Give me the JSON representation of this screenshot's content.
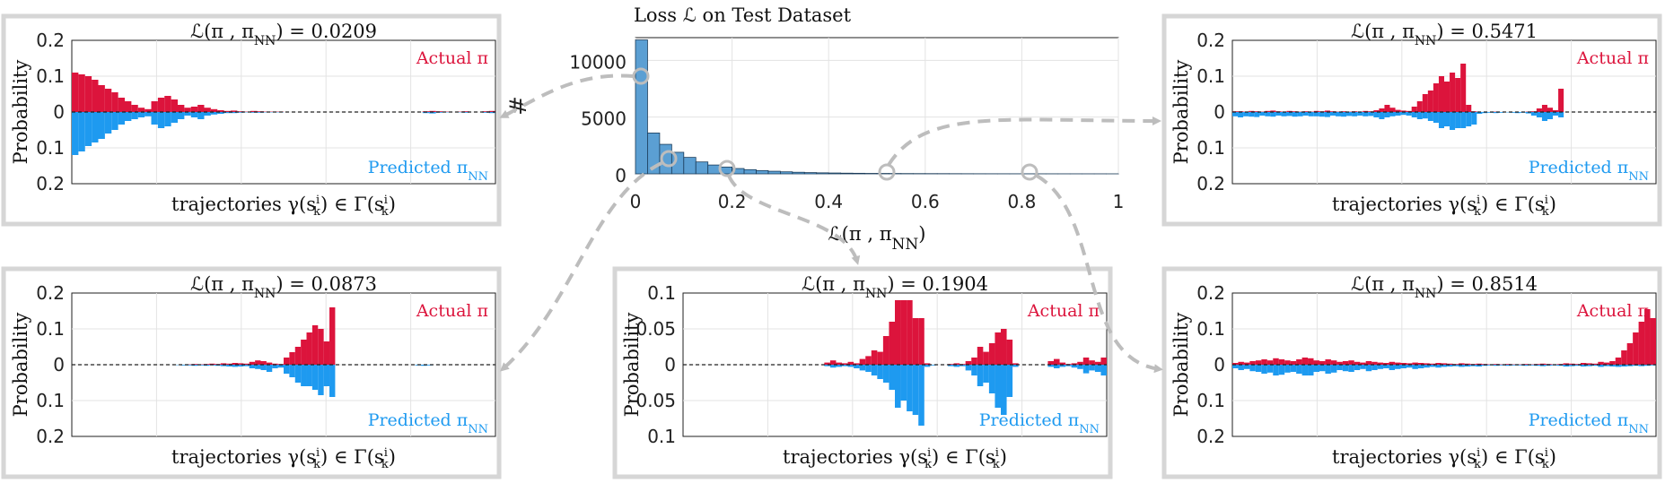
{
  "chart_data": [
    {
      "id": "histogram",
      "type": "bar",
      "title": "Loss ℒ on Test Dataset",
      "xlabel": "ℒ(π , π_NN)",
      "ylabel": "#",
      "xlim": [
        0,
        1
      ],
      "ylim": [
        0,
        12000
      ],
      "xticks": [
        "0",
        "0.2",
        "0.4",
        "0.6",
        "0.8",
        "1"
      ],
      "yticks": [
        "0",
        "5000",
        "10000"
      ],
      "bin_width": 0.025,
      "values": [
        11800,
        3600,
        2600,
        1900,
        1450,
        1050,
        780,
        600,
        470,
        370,
        290,
        230,
        180,
        140,
        110,
        90,
        75,
        60,
        50,
        40,
        35,
        30,
        25,
        22,
        20,
        18,
        15,
        12,
        10,
        9,
        8,
        7,
        6,
        5,
        5,
        4,
        4,
        3,
        3,
        2
      ],
      "color": "#5b9fd3"
    },
    {
      "id": "loss-0209",
      "type": "bar",
      "title_prefix": "ℒ(π , π",
      "title_sub": "NN",
      "title_value": ") = 0.0209",
      "ylabel": "Probability",
      "xlabel": "trajectories γ(s_k^i) ∈ Γ(s_k^i)",
      "yticks": [
        "0.2",
        "0.1",
        "0",
        "0.1",
        "0.2"
      ],
      "ylim": [
        -0.2,
        0.2
      ],
      "legend_actual": "Actual π",
      "legend_pred": "Predicted π",
      "legend_pred_sub": "NN",
      "actual": [
        0.11,
        0.105,
        0.1,
        0.09,
        0.075,
        0.065,
        0.055,
        0.04,
        0.03,
        0.02,
        0.012,
        0.008,
        0.03,
        0.04,
        0.045,
        0.035,
        0.02,
        0.012,
        0.015,
        0.02,
        0.012,
        0.008,
        0.005,
        0.003,
        0.004,
        0.002,
        0.001,
        0.003,
        0.002,
        0.001,
        0.001,
        0.001,
        0.0,
        0.0,
        0.0,
        0.0,
        0.0,
        0.0,
        0.0,
        0.0,
        0.0,
        0.0,
        0.0,
        0.0,
        0.0,
        0.0,
        0.0,
        0.0,
        0.0,
        0.0,
        0.0,
        0.0,
        0.0,
        0.002,
        0.003,
        0.002,
        0.001,
        0.0,
        0.001,
        0.002,
        0.0,
        0.0,
        0.002,
        0.003
      ],
      "predicted": [
        0.12,
        0.11,
        0.095,
        0.085,
        0.075,
        0.06,
        0.05,
        0.035,
        0.025,
        0.02,
        0.015,
        0.012,
        0.035,
        0.045,
        0.04,
        0.03,
        0.02,
        0.01,
        0.015,
        0.02,
        0.01,
        0.007,
        0.005,
        0.003,
        0.003,
        0.002,
        0.001,
        0.002,
        0.002,
        0.001,
        0.001,
        0.001,
        0.0,
        0.0,
        0.0,
        0.0,
        0.0,
        0.0,
        0.0,
        0.0,
        0.0,
        0.0,
        0.0,
        0.0,
        0.0,
        0.0,
        0.0,
        0.0,
        0.0,
        0.0,
        0.0,
        0.0,
        0.0,
        0.003,
        0.004,
        0.002,
        0.001,
        0.0,
        0.001,
        0.002,
        0.0,
        0.0,
        0.002,
        0.003
      ]
    },
    {
      "id": "loss-5471",
      "type": "bar",
      "title_prefix": "ℒ(π , π",
      "title_sub": "NN",
      "title_value": ") = 0.5471",
      "ylabel": "Probability",
      "xlabel": "trajectories γ(s_k^i) ∈ Γ(s_k^i)",
      "yticks": [
        "0.2",
        "0.1",
        "0",
        "0.1",
        "0.2"
      ],
      "ylim": [
        -0.2,
        0.2
      ],
      "legend_actual": "Actual π",
      "legend_pred": "Predicted π",
      "legend_pred_sub": "NN",
      "actual": [
        0.002,
        0.002,
        0.001,
        0.003,
        0.002,
        0.001,
        0.003,
        0.004,
        0.002,
        0.001,
        0.003,
        0.002,
        0.001,
        0.002,
        0.001,
        0.003,
        0.002,
        0.004,
        0.002,
        0.001,
        0.002,
        0.001,
        0.002,
        0.001,
        0.003,
        0.002,
        0.005,
        0.01,
        0.02,
        0.012,
        0.006,
        0.004,
        0.003,
        0.015,
        0.03,
        0.05,
        0.06,
        0.08,
        0.1,
        0.085,
        0.11,
        0.095,
        0.135,
        0.02,
        0.002,
        0.0,
        0.0,
        0.0,
        0.001,
        0.0,
        0.0,
        0.0,
        0.0,
        0.0,
        0.001,
        0.002,
        0.01,
        0.02,
        0.012,
        0.005,
        0.065,
        0.0,
        0.0,
        0.0,
        0.0,
        0.0,
        0.0,
        0.0,
        0.0,
        0.0,
        0.0,
        0.0,
        0.0,
        0.0,
        0.0,
        0.0,
        0.0,
        0.0
      ],
      "predicted": [
        0.012,
        0.015,
        0.012,
        0.013,
        0.014,
        0.01,
        0.012,
        0.013,
        0.01,
        0.012,
        0.011,
        0.013,
        0.012,
        0.01,
        0.012,
        0.012,
        0.013,
        0.014,
        0.01,
        0.012,
        0.013,
        0.011,
        0.012,
        0.01,
        0.012,
        0.011,
        0.015,
        0.02,
        0.015,
        0.012,
        0.01,
        0.008,
        0.01,
        0.015,
        0.02,
        0.018,
        0.025,
        0.03,
        0.045,
        0.04,
        0.05,
        0.045,
        0.045,
        0.04,
        0.035,
        0.005,
        0.003,
        0.002,
        0.003,
        0.002,
        0.001,
        0.002,
        0.003,
        0.002,
        0.004,
        0.01,
        0.015,
        0.025,
        0.02,
        0.01,
        0.015,
        0.0,
        0.0,
        0.0,
        0.0,
        0.0,
        0.0,
        0.0,
        0.0,
        0.0,
        0.0,
        0.0,
        0.0,
        0.0,
        0.0,
        0.0,
        0.0,
        0.0
      ]
    },
    {
      "id": "loss-0873",
      "type": "bar",
      "title_prefix": "ℒ(π , π",
      "title_sub": "NN",
      "title_value": ") = 0.0873",
      "ylabel": "Probability",
      "xlabel": "trajectories γ(s_k^i) ∈ Γ(s_k^i)",
      "yticks": [
        "0.2",
        "0.1",
        "0",
        "0.1",
        "0.2"
      ],
      "ylim": [
        -0.2,
        0.2
      ],
      "legend_actual": "Actual π",
      "legend_pred": "Predicted π",
      "legend_pred_sub": "NN",
      "actual": [
        0.0,
        0.0,
        0.0,
        0.0,
        0.0,
        0.0,
        0.0,
        0.0,
        0.0,
        0.0,
        0.0,
        0.0,
        0.0,
        0.0,
        0.0,
        0.0,
        0.0,
        0.0,
        0.0,
        0.0,
        0.001,
        0.002,
        0.001,
        0.002,
        0.003,
        0.002,
        0.004,
        0.003,
        0.005,
        0.004,
        0.003,
        0.008,
        0.012,
        0.01,
        0.006,
        0.003,
        0.002,
        0.02,
        0.035,
        0.05,
        0.07,
        0.09,
        0.11,
        0.1,
        0.065,
        0.16,
        0.0,
        0.0,
        0.0,
        0.0,
        0.0,
        0.0,
        0.0,
        0.0,
        0.0,
        0.0,
        0.0,
        0.0,
        0.0,
        0.0,
        0.0,
        0.0,
        0.0,
        0.0,
        0.0,
        0.0,
        0.0,
        0.0,
        0.0,
        0.0,
        0.0,
        0.0,
        0.0,
        0.0
      ],
      "predicted": [
        0.0,
        0.0,
        0.0,
        0.0,
        0.0,
        0.0,
        0.0,
        0.0,
        0.0,
        0.0,
        0.0,
        0.0,
        0.0,
        0.0,
        0.0,
        0.0,
        0.0,
        0.0,
        0.001,
        0.002,
        0.002,
        0.003,
        0.002,
        0.003,
        0.002,
        0.003,
        0.004,
        0.005,
        0.006,
        0.005,
        0.004,
        0.01,
        0.012,
        0.015,
        0.02,
        0.01,
        0.008,
        0.025,
        0.035,
        0.05,
        0.06,
        0.06,
        0.07,
        0.085,
        0.06,
        0.09,
        0.0,
        0.0,
        0.0,
        0.0,
        0.0,
        0.0,
        0.0,
        0.0,
        0.0,
        0.0,
        0.0,
        0.0,
        0.0,
        0.0,
        0.002,
        0.003,
        0.002,
        0.0,
        0.0,
        0.0,
        0.0,
        0.0,
        0.0,
        0.0,
        0.0,
        0.0,
        0.0,
        0.0
      ]
    },
    {
      "id": "loss-1904",
      "type": "bar",
      "title_prefix": "ℒ(π , π",
      "title_sub": "NN",
      "title_value": ") = 0.1904",
      "ylabel": "Probability",
      "xlabel": "trajectories γ(s_k^i) ∈ Γ(s_k^i)",
      "yticks": [
        "0.1",
        "0.05",
        "0",
        "0.05",
        "0.1"
      ],
      "ylim": [
        -0.1,
        0.1
      ],
      "legend_actual": "Actual π",
      "legend_pred": "Predicted π",
      "legend_pred_sub": "NN",
      "actual": [
        0.0,
        0.0,
        0.0,
        0.0,
        0.0,
        0.0,
        0.0,
        0.0,
        0.0,
        0.0,
        0.0,
        0.0,
        0.0,
        0.0,
        0.0,
        0.0,
        0.0,
        0.0,
        0.0,
        0.0,
        0.0,
        0.0,
        0.0,
        0.0,
        0.003,
        0.006,
        0.003,
        0.002,
        0.004,
        0.002,
        0.008,
        0.012,
        0.02,
        0.018,
        0.04,
        0.06,
        0.09,
        0.09,
        0.09,
        0.065,
        0.065,
        0.002,
        0.0,
        0.0,
        0.0,
        0.001,
        0.002,
        0.001,
        0.005,
        0.01,
        0.025,
        0.018,
        0.03,
        0.045,
        0.05,
        0.035,
        0.002,
        0.0,
        0.0,
        0.0,
        0.0,
        0.0,
        0.005,
        0.008,
        0.003,
        0.001,
        0.002,
        0.004,
        0.01,
        0.006,
        0.004,
        0.01
      ],
      "predicted": [
        0.0,
        0.0,
        0.0,
        0.0,
        0.0,
        0.0,
        0.0,
        0.0,
        0.0,
        0.0,
        0.0,
        0.0,
        0.0,
        0.0,
        0.0,
        0.0,
        0.0,
        0.0,
        0.0,
        0.0,
        0.0,
        0.0,
        0.0,
        0.0,
        0.002,
        0.004,
        0.003,
        0.002,
        0.003,
        0.005,
        0.008,
        0.01,
        0.015,
        0.02,
        0.025,
        0.035,
        0.06,
        0.05,
        0.065,
        0.07,
        0.085,
        0.003,
        0.001,
        0.0,
        0.0,
        0.002,
        0.003,
        0.002,
        0.008,
        0.015,
        0.03,
        0.025,
        0.04,
        0.06,
        0.07,
        0.045,
        0.003,
        0.0,
        0.0,
        0.0,
        0.0,
        0.0,
        0.003,
        0.005,
        0.003,
        0.002,
        0.004,
        0.006,
        0.012,
        0.008,
        0.01,
        0.015
      ]
    },
    {
      "id": "loss-8514",
      "type": "bar",
      "title_prefix": "ℒ(π , π",
      "title_sub": "NN",
      "title_value": ") = 0.8514",
      "ylabel": "Probability",
      "xlabel": "trajectories γ(s_k^i) ∈ Γ(s_k^i)",
      "yticks": [
        "0.2",
        "0.1",
        "0",
        "0.1",
        "0.2"
      ],
      "ylim": [
        -0.2,
        0.2
      ],
      "legend_actual": "Actual π",
      "legend_pred": "Predicted π",
      "legend_pred_sub": "NN",
      "actual": [
        0.005,
        0.008,
        0.006,
        0.01,
        0.012,
        0.015,
        0.012,
        0.018,
        0.015,
        0.012,
        0.01,
        0.015,
        0.02,
        0.018,
        0.012,
        0.01,
        0.015,
        0.012,
        0.008,
        0.01,
        0.012,
        0.008,
        0.006,
        0.01,
        0.008,
        0.006,
        0.005,
        0.008,
        0.006,
        0.005,
        0.004,
        0.006,
        0.005,
        0.004,
        0.003,
        0.005,
        0.004,
        0.003,
        0.002,
        0.004,
        0.003,
        0.002,
        0.003,
        0.002,
        0.001,
        0.002,
        0.001,
        0.002,
        0.001,
        0.001,
        0.002,
        0.001,
        0.002,
        0.003,
        0.002,
        0.001,
        0.002,
        0.004,
        0.003,
        0.002,
        0.005,
        0.004,
        0.003,
        0.008,
        0.006,
        0.01,
        0.02,
        0.04,
        0.06,
        0.09,
        0.12,
        0.155,
        0.13
      ],
      "predicted": [
        0.01,
        0.015,
        0.012,
        0.018,
        0.02,
        0.025,
        0.022,
        0.03,
        0.028,
        0.022,
        0.02,
        0.025,
        0.03,
        0.03,
        0.02,
        0.018,
        0.025,
        0.022,
        0.015,
        0.018,
        0.02,
        0.015,
        0.012,
        0.018,
        0.015,
        0.012,
        0.01,
        0.015,
        0.012,
        0.01,
        0.008,
        0.012,
        0.01,
        0.008,
        0.006,
        0.008,
        0.006,
        0.005,
        0.004,
        0.006,
        0.005,
        0.004,
        0.005,
        0.003,
        0.002,
        0.003,
        0.002,
        0.003,
        0.002,
        0.002,
        0.003,
        0.002,
        0.003,
        0.004,
        0.003,
        0.002,
        0.003,
        0.005,
        0.004,
        0.003,
        0.005,
        0.004,
        0.003,
        0.006,
        0.004,
        0.005,
        0.006,
        0.005,
        0.004,
        0.003,
        0.004,
        0.003,
        0.002
      ]
    }
  ],
  "colors": {
    "actual": "#dc143c",
    "predicted": "#1e9af0",
    "histogram": "#5b9fd3",
    "frame": "#d6d6d6",
    "arrow": "#bdbdbd"
  }
}
